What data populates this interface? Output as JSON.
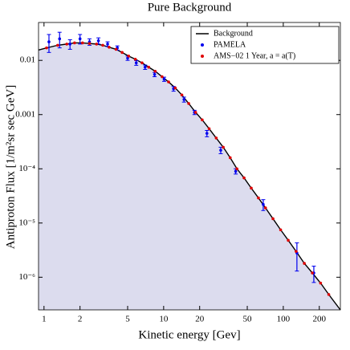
{
  "chart_data": {
    "type": "scatter",
    "title": "Pure Background",
    "x_label": "Kinetic energy [Gev]",
    "y_label": "Antiproton Flux [1/m²sr sec GeV]",
    "x_log": true,
    "y_log": true,
    "xlim": [
      0.9,
      300
    ],
    "ylim": [
      2.5e-07,
      0.05
    ],
    "xticks": [
      1,
      2,
      5,
      10,
      20,
      50,
      100,
      200
    ],
    "yticks": [
      0.01,
      0.001,
      {
        "value": 0.0001,
        "label": "10⁻⁴"
      },
      {
        "value": 1e-05,
        "label": "10⁻⁵"
      },
      {
        "value": 1e-06,
        "label": "10⁻⁶"
      }
    ],
    "area_color": "#dcdcee",
    "legend": "top-right",
    "series": [
      {
        "name": "Background",
        "type": "line",
        "color": "#000000",
        "x": [
          0.9,
          1.05,
          1.3,
          1.55,
          1.8,
          2.1,
          2.4,
          2.75,
          3.1,
          3.5,
          4.0,
          4.5,
          5.1,
          5.8,
          6.6,
          7.5,
          8.5,
          9.7,
          11,
          12.5,
          14.2,
          16.2,
          18.5,
          21,
          24,
          27.5,
          31.5,
          36,
          41,
          47,
          54,
          62,
          71,
          82,
          95,
          110,
          128,
          150,
          175,
          205,
          240,
          300
        ],
        "values": [
          0.0155,
          0.017,
          0.019,
          0.02,
          0.021,
          0.021,
          0.0205,
          0.02,
          0.019,
          0.0175,
          0.016,
          0.014,
          0.012,
          0.0105,
          0.009,
          0.0075,
          0.0063,
          0.005,
          0.004,
          0.0031,
          0.0023,
          0.0016,
          0.0011,
          0.0008,
          0.00055,
          0.00037,
          0.00025,
          0.00016,
          0.0001,
          6.8e-05,
          4.4e-05,
          2.9e-05,
          1.9e-05,
          1.2e-05,
          7.5e-06,
          4.8e-06,
          3e-06,
          1.8e-06,
          1.2e-06,
          7.8e-07,
          4.8e-07,
          2.5e-07
        ]
      },
      {
        "name": "PAMELA",
        "type": "scatter",
        "color": "#0000ee",
        "x": [
          1.1,
          1.35,
          1.65,
          2.0,
          2.4,
          2.85,
          3.4,
          4.1,
          5.0,
          5.9,
          7.0,
          8.4,
          10.1,
          12.1,
          14.8,
          18.1,
          23,
          30,
          40,
          68,
          130,
          180
        ],
        "values": [
          0.022,
          0.025,
          0.02,
          0.025,
          0.022,
          0.023,
          0.02,
          0.017,
          0.011,
          0.009,
          0.0075,
          0.0055,
          0.0045,
          0.003,
          0.0019,
          0.0011,
          0.00045,
          0.00022,
          9e-05,
          2.2e-05,
          2.8e-06,
          1.2e-06
        ],
        "errors": [
          0.008,
          0.008,
          0.004,
          0.005,
          0.003,
          0.003,
          0.002,
          0.0015,
          0.001,
          0.0009,
          0.0007,
          0.0005,
          0.0004,
          0.0003,
          0.0002,
          0.0001,
          6e-05,
          3e-05,
          1e-05,
          5e-06,
          1.5e-06,
          4e-07
        ]
      },
      {
        "name": "AMS−02 1 Year, a = a(T)",
        "type": "scatter",
        "color": "#e00000",
        "x": [
          1.05,
          1.3,
          1.55,
          1.8,
          2.1,
          2.4,
          2.75,
          3.1,
          3.5,
          4.0,
          4.5,
          5.1,
          5.8,
          6.6,
          7.5,
          8.5,
          9.7,
          11,
          12.5,
          14.2,
          16.2,
          18.5,
          21,
          24,
          27.5,
          31.5,
          36,
          41,
          47,
          54,
          62,
          71,
          82,
          95,
          110,
          128,
          150,
          175,
          205,
          240
        ],
        "values": [
          0.017,
          0.019,
          0.02,
          0.021,
          0.021,
          0.0205,
          0.02,
          0.019,
          0.0175,
          0.016,
          0.014,
          0.012,
          0.0105,
          0.009,
          0.0075,
          0.0063,
          0.005,
          0.004,
          0.0031,
          0.0023,
          0.0016,
          0.0011,
          0.0008,
          0.00055,
          0.00037,
          0.00025,
          0.00016,
          0.0001,
          6.8e-05,
          4.4e-05,
          2.9e-05,
          1.9e-05,
          1.2e-05,
          7.5e-06,
          4.8e-06,
          3e-06,
          1.8e-06,
          1.2e-06,
          7.8e-07,
          4.8e-07
        ]
      }
    ]
  }
}
